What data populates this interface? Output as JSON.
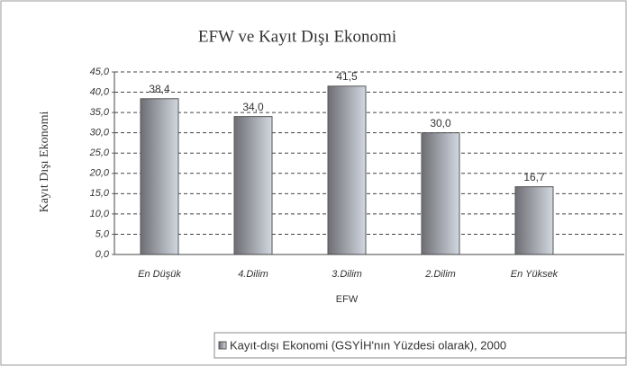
{
  "chart_data": {
    "type": "bar",
    "title": "EFW ve Kayıt Dışı Ekonomi",
    "x_label": "EFW",
    "y_label": "Kayıt Dışı Ekonomi",
    "categories": [
      "En Düşük",
      "4.Dilim",
      "3.Dilim",
      "2.Dilim",
      "En Yüksek"
    ],
    "series": [
      {
        "name": "Kayıt-dışı Ekonomi (GSYİH'nın Yüzdesi olarak), 2000",
        "color": "#8c8c94",
        "values": [
          38.4,
          34.0,
          41.5,
          30.0,
          16.7
        ],
        "value_labels": [
          "38,4",
          "34,0",
          "41,5",
          "30,0",
          "16,7"
        ]
      }
    ],
    "ylim": [
      0,
      45
    ],
    "yticks": [
      {
        "value": 0,
        "label": "0,0"
      },
      {
        "value": 5,
        "label": "5,0"
      },
      {
        "value": 10,
        "label": "10,0"
      },
      {
        "value": 15,
        "label": "15,0"
      },
      {
        "value": 20,
        "label": "20,0"
      },
      {
        "value": 25,
        "label": "25,0"
      },
      {
        "value": 30,
        "label": "30,0"
      },
      {
        "value": 35,
        "label": "35,0"
      },
      {
        "value": 40,
        "label": "40,0"
      },
      {
        "value": 45,
        "label": "45,0"
      }
    ],
    "grid": true,
    "legend": "bottom-right"
  }
}
